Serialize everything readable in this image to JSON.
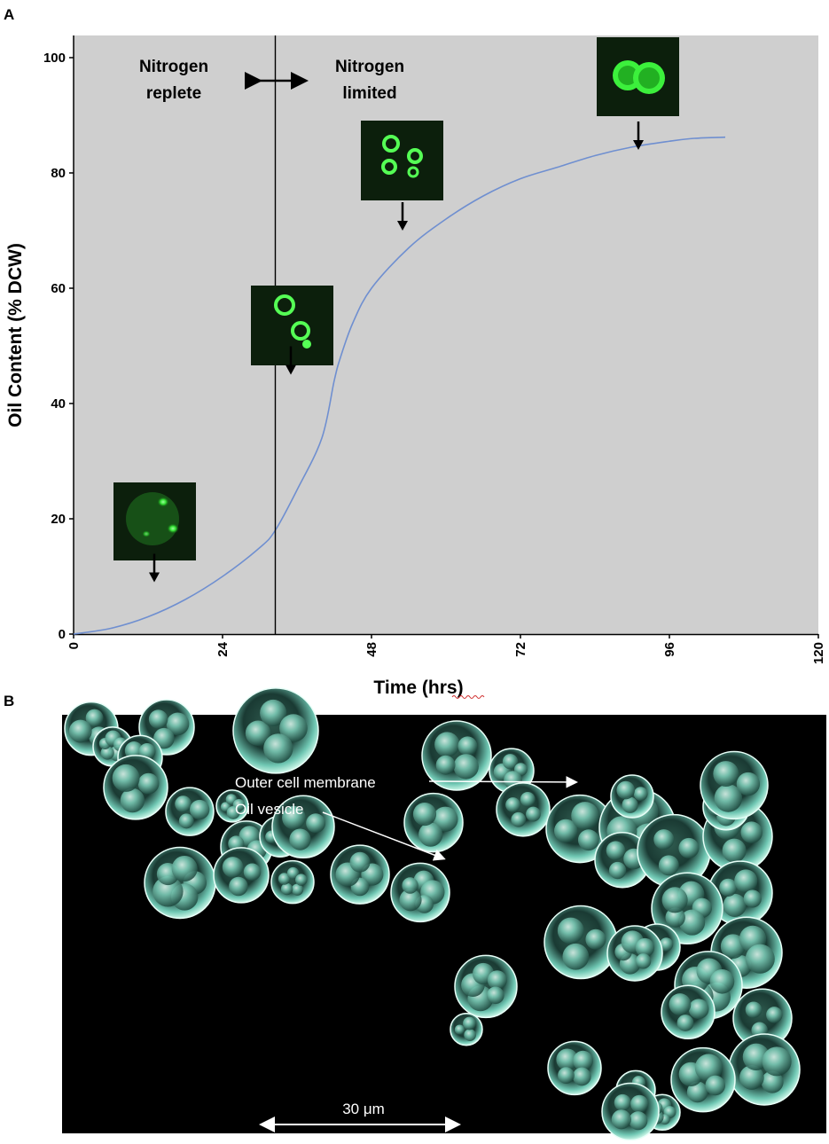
{
  "panels": {
    "a": "A",
    "b": "B"
  },
  "chart_data": {
    "type": "line",
    "title": "",
    "xlabel": "Time (hrs)",
    "ylabel": "Oil Content (% DCW)",
    "xlim": [
      0,
      120
    ],
    "ylim": [
      0,
      100
    ],
    "xticks": [
      0,
      24,
      48,
      72,
      96,
      120
    ],
    "yticks": [
      0,
      20,
      40,
      60,
      80,
      100
    ],
    "x_tick_labels": [
      "0",
      "24",
      "48",
      "72",
      "96",
      "120"
    ],
    "y_tick_labels": [
      "0",
      "20",
      "40",
      "60",
      "80",
      "100"
    ],
    "grid": false,
    "legend": "none",
    "series": [
      {
        "x": [
          0,
          6,
          12,
          18,
          24,
          30,
          32.5,
          36,
          40,
          42,
          43,
          45,
          48,
          54,
          60,
          66,
          72,
          78,
          84,
          90,
          96,
          100,
          105
        ],
        "y": [
          0,
          1,
          3,
          6,
          10,
          15,
          18,
          25,
          34,
          44,
          48,
          54,
          60,
          67,
          72,
          76,
          79,
          81,
          83,
          84.5,
          85.5,
          86,
          86.2
        ]
      }
    ],
    "divider_x": 32.5,
    "phase_labels": [
      {
        "line1": "Nitrogen",
        "line2": "replete"
      },
      {
        "line1": "Nitrogen",
        "line2": "limited"
      }
    ],
    "inset_markers": [
      {
        "name": "inset-micrograph-early",
        "x": 13,
        "y": 9
      },
      {
        "name": "inset-micrograph-transition",
        "x": 35,
        "y": 45
      },
      {
        "name": "inset-micrograph-mid",
        "x": 53,
        "y": 70
      },
      {
        "name": "inset-micrograph-late",
        "x": 91,
        "y": 84
      }
    ],
    "colors": {
      "line": "#6f8fd0",
      "plot_background": "#cfcfcf",
      "divider": "#000000"
    }
  },
  "micrograph": {
    "label_membrane": "Outer cell membrane",
    "label_vesicle": "Oil vesicle",
    "scale_bar": "30 μm",
    "colors": {
      "background": "#000000",
      "cells": "#8fd8c8",
      "labels": "#ffffff"
    }
  }
}
